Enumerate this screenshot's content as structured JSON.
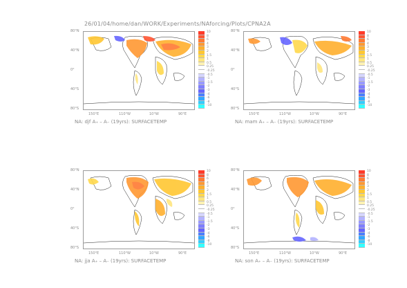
{
  "header": {
    "path": "26/01/04/home/dan/WORK/Experiments/NAforcing/Plots/CPNA2A"
  },
  "axes": {
    "y_ticks": [
      "80°N",
      "40°N",
      "0°",
      "40°S",
      "80°S"
    ],
    "x_ticks": [
      "150°E",
      "110°W",
      "10°W",
      "90°E"
    ]
  },
  "colorbar": {
    "labels": [
      "10",
      "8",
      "6",
      "4",
      "3",
      "2",
      "1.5",
      "1",
      "0.5",
      "0.25",
      "-0.25",
      "-0.5",
      "-1",
      "-1.5",
      "-2",
      "-3",
      "-4",
      "-6",
      "-8",
      "-10"
    ],
    "colors": [
      "#ff3b2a",
      "#ff5533",
      "#ff7a33",
      "#ff9933",
      "#ffb02e",
      "#ffc733",
      "#ffd94d",
      "#ffe680",
      "#fff2b3",
      "#ffffff",
      "#ffffff",
      "#d6d6ff",
      "#b3b3ff",
      "#9999ff",
      "#7f7fff",
      "#6666ff",
      "#4c7fff",
      "#33a6ff",
      "#33ccff",
      "#33ffff"
    ]
  },
  "panels": [
    {
      "caption": "NA: djf A₊ – A₋ (19yrs): SURFACETEMP",
      "season": "djf"
    },
    {
      "caption": "NA: mam A₊ – A₋ (19yrs): SURFACETEMP",
      "season": "mam"
    },
    {
      "caption": "NA: jja A₊ – A₋ (19yrs): SURFACETEMP",
      "season": "jja"
    },
    {
      "caption": "NA: son A₊ – A₋ (19yrs): SURFACETEMP",
      "season": "son"
    }
  ]
}
